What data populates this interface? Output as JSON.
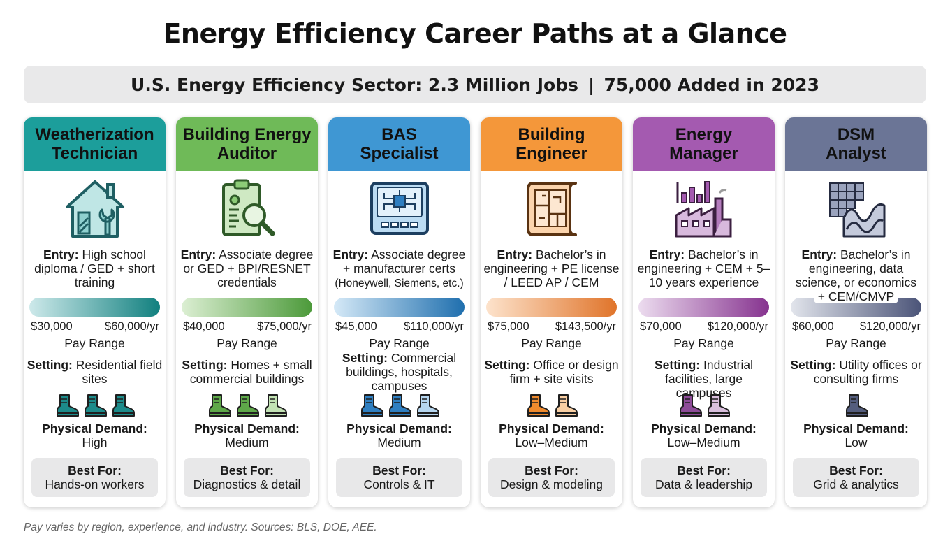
{
  "title": "Energy Efficiency Career Paths at a Glance",
  "banner": {
    "left": "U.S. Energy Efficiency Sector: 2.3 Million Jobs",
    "separator": "|",
    "right": "75,000 Added in 2023"
  },
  "labels": {
    "entry": "Entry:",
    "pay_range": "Pay Range",
    "setting": "Setting:",
    "physical_demand": "Physical Demand:",
    "best_for": "Best For:"
  },
  "careers": [
    {
      "title_line1": "Weatherization",
      "title_line2": "Technician",
      "icon": "house-wrench-icon",
      "entry": "High school diploma / GED + short training",
      "pay_min": "$30,000",
      "pay_max": "$60,000/yr",
      "setting": "Residential field sites",
      "demand_level": 3,
      "demand": "High",
      "best_for": "Hands-on workers",
      "colors": {
        "head": "#1c9e9b",
        "bar_from": "#cde9ea",
        "bar_to": "#11807f",
        "boot": "#1c8b8a",
        "boot_light": "#a8dada"
      }
    },
    {
      "title_line1": "Building Energy",
      "title_line2": "Auditor",
      "icon": "clipboard-magnifier-icon",
      "entry": "Associate degree or GED + BPI/RESNET credentials",
      "pay_min": "$40,000",
      "pay_max": "$75,000/yr",
      "setting": "Homes + small commercial buildings",
      "demand_level": 2,
      "demand": "Medium",
      "best_for": "Diagnostics & detail",
      "colors": {
        "head": "#6fba58",
        "bar_from": "#dcefd3",
        "bar_to": "#4c9a3a",
        "boot": "#5ea849",
        "boot_light": "#c2e2b4"
      }
    },
    {
      "title_line1": "BAS",
      "title_line2": "Specialist",
      "icon": "circuit-panel-icon",
      "entry_line1": "Associate degree + manufacturer certs",
      "entry_line2": "(Honeywell, Siemens, etc.)",
      "pay_min": "$45,000",
      "pay_max": "$110,000/yr",
      "setting": "Commercial buildings, hospitals, campuses",
      "demand_level": 2,
      "demand": "Medium",
      "best_for": "Controls & IT",
      "colors": {
        "head": "#3f97d3",
        "bar_from": "#d5e9f7",
        "bar_to": "#1f6fae",
        "boot": "#2f7fc1",
        "boot_light": "#b6d6ef"
      }
    },
    {
      "title_line1": "Building",
      "title_line2": "Engineer",
      "icon": "blueprint-icon",
      "entry": "Bachelor’s in engineering + PE license / LEED AP / CEM",
      "pay_min": "$75,000",
      "pay_max": "$143,500/yr",
      "setting": "Office or design firm + site visits",
      "demand_level": 1.5,
      "demand": "Low–Medium",
      "best_for": "Design & modeling",
      "colors": {
        "head": "#f4973a",
        "bar_from": "#fde3cc",
        "bar_to": "#e0742a",
        "boot": "#ef8a2d",
        "boot_light": "#f9cfa3"
      }
    },
    {
      "title_line1": "Energy",
      "title_line2": "Manager",
      "icon": "factory-chart-icon",
      "entry": "Bachelor’s in engineering + CEM + 5–10 years experience",
      "pay_min": "$70,000",
      "pay_max": "$120,000/yr",
      "setting": "Industrial facilities, large campuses",
      "demand_level": 1.5,
      "demand": "Low–Medium",
      "best_for": "Data & leadership",
      "colors": {
        "head": "#a45ab0",
        "bar_from": "#ecdcef",
        "bar_to": "#86338f",
        "boot": "#8d4b98",
        "boot_light": "#d9bfdd"
      }
    },
    {
      "title_line1": "DSM",
      "title_line2": "Analyst",
      "icon": "grid-wave-icon",
      "entry": "Bachelor’s in engineering, data science, or economics",
      "entry_extra": "+ CEM/CMVP",
      "pay_min": "$60,000",
      "pay_max": "$120,000/yr",
      "setting": "Utility offices or consulting firms",
      "demand_level": 1,
      "demand": "Low",
      "best_for": "Grid & analytics",
      "colors": {
        "head": "#6b7596",
        "bar_from": "#e2e5ec",
        "bar_to": "#4b5478",
        "boot": "#545d7d",
        "boot_light": "#c5cad8"
      }
    }
  ],
  "footnote": "Pay varies by region, experience, and industry. Sources: BLS, DOE, AEE."
}
